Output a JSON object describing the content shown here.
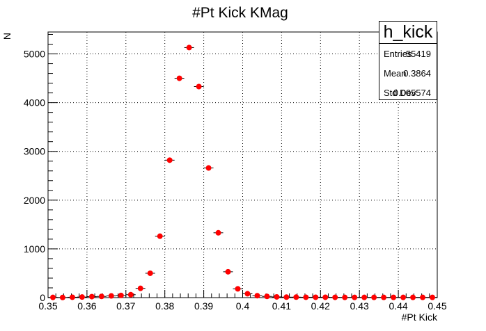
{
  "chart_data": {
    "type": "scatter",
    "title": "#Pt Kick KMag",
    "xlabel": "#Pt Kick",
    "ylabel": "N",
    "xlim": [
      0.35,
      0.45
    ],
    "ylim": [
      0,
      5450
    ],
    "xticks": [
      "0.35",
      "0.36",
      "0.37",
      "0.38",
      "0.39",
      "0.4",
      "0.41",
      "0.42",
      "0.43",
      "0.44",
      "0.45"
    ],
    "yticks": [
      "0",
      "1000",
      "2000",
      "3000",
      "4000",
      "5000"
    ],
    "grid": true,
    "marker_color": "#ff0000",
    "series": [
      {
        "x": [
          0.35125,
          0.35375,
          0.35625,
          0.35875,
          0.36125,
          0.36375,
          0.36625,
          0.36875,
          0.37125,
          0.37375,
          0.37625,
          0.37875,
          0.38125,
          0.38375,
          0.38625,
          0.38875,
          0.39125,
          0.39375,
          0.39625,
          0.39875,
          0.40125,
          0.40375,
          0.40625,
          0.40875,
          0.41125,
          0.41375,
          0.41625,
          0.41875,
          0.42125,
          0.42375,
          0.42625,
          0.42875,
          0.43125,
          0.43375,
          0.43625,
          0.43875,
          0.44125,
          0.44375,
          0.44625,
          0.44875
        ],
        "y": [
          5,
          3,
          8,
          12,
          20,
          25,
          35,
          45,
          60,
          190,
          500,
          1260,
          2820,
          4500,
          5130,
          4330,
          2660,
          1330,
          530,
          180,
          80,
          40,
          25,
          15,
          10,
          10,
          8,
          8,
          8,
          6,
          5,
          5,
          5,
          5,
          5,
          5,
          5,
          5,
          5,
          5
        ]
      }
    ],
    "stats": {
      "title": "h_kick",
      "entries_label": "Entries",
      "entries": "55419",
      "mean_label": "Mean",
      "mean": "0.3864",
      "std_label": "Std Dev",
      "std": "0.005574"
    }
  }
}
